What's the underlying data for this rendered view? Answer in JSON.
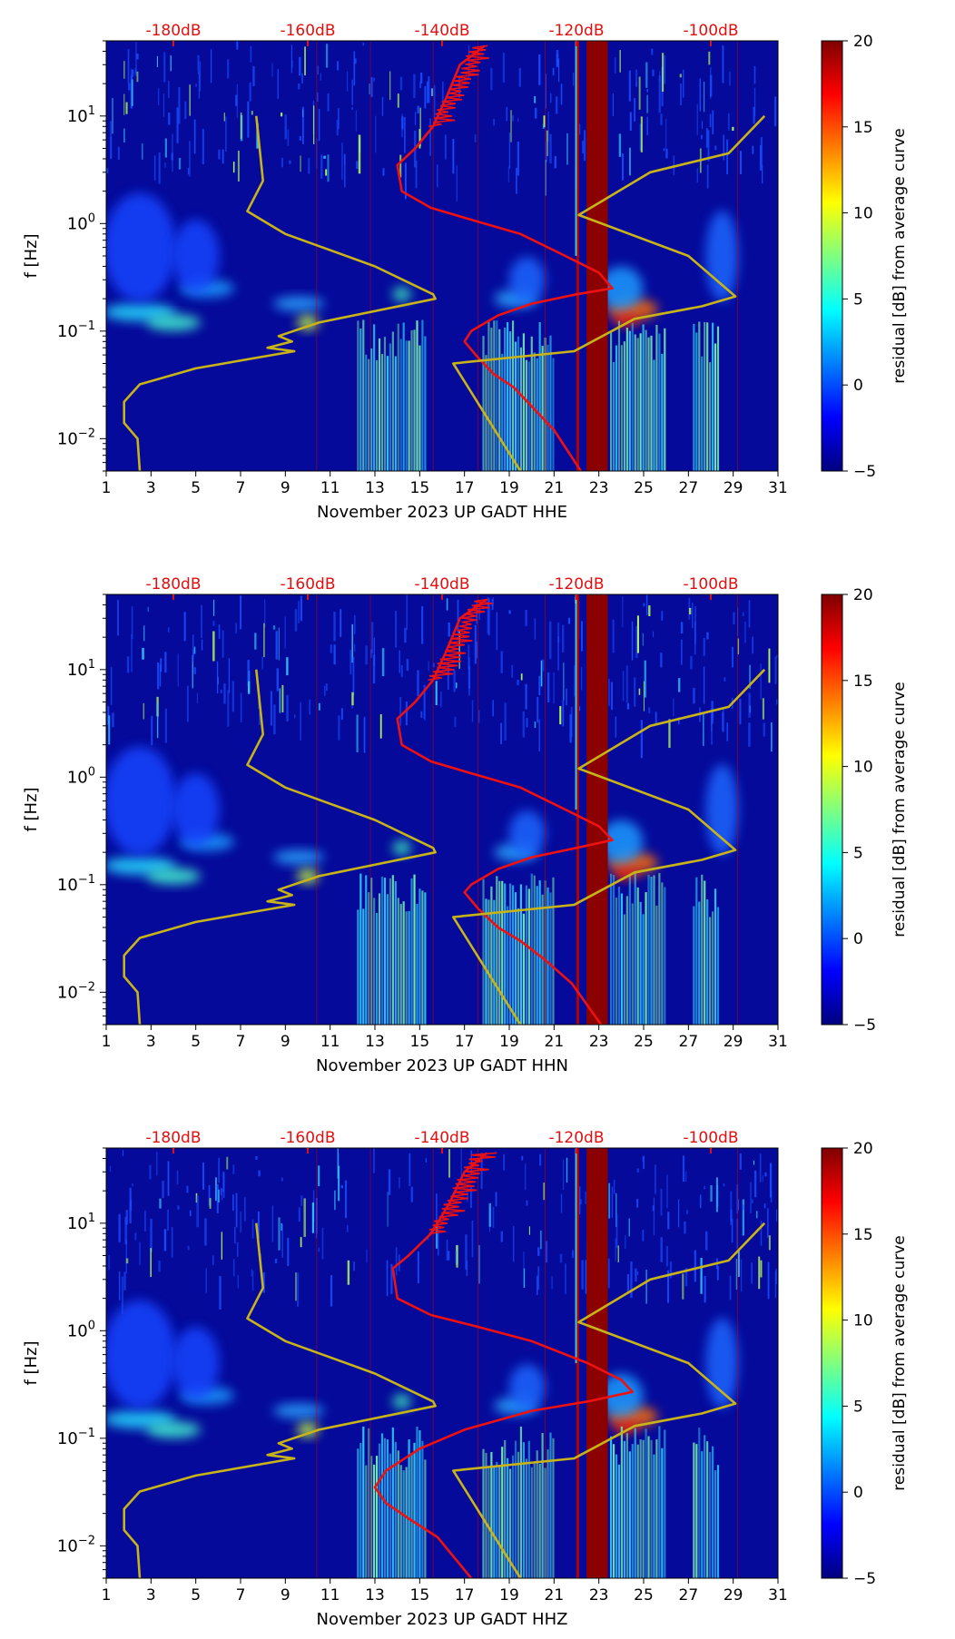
{
  "figure": {
    "day_ticks": [
      "1",
      "3",
      "5",
      "7",
      "9",
      "11",
      "13",
      "15",
      "17",
      "19",
      "21",
      "23",
      "25",
      "27",
      "29",
      "31"
    ],
    "freq_ticks": [
      {
        "base": "10",
        "exp": "1",
        "value": 10
      },
      {
        "base": "10",
        "exp": "0",
        "value": 1
      },
      {
        "base": "10",
        "exp": "−1",
        "value": 0.1
      },
      {
        "base": "10",
        "exp": "−2",
        "value": 0.01
      }
    ],
    "db_ticks": [
      {
        "label": "-180dB",
        "day": 4
      },
      {
        "label": "-160dB",
        "day": 10
      },
      {
        "label": "-140dB",
        "day": 16
      },
      {
        "label": "-120dB",
        "day": 22
      },
      {
        "label": "-100dB",
        "day": 28
      }
    ],
    "ylabel": "f [Hz]",
    "colorbar": {
      "label": "residual [dB] from average curve",
      "ticks": [
        "20",
        "15",
        "10",
        "5",
        "0",
        "−5"
      ],
      "range": [
        -5,
        20
      ],
      "colormap": [
        "#00007f",
        "#0000ff",
        "#007fff",
        "#00ffff",
        "#7fff7f",
        "#ffff00",
        "#ff7f00",
        "#ff0000",
        "#7f0000"
      ]
    },
    "colors": {
      "red_curve": "#ee1111",
      "yellow_curve": "#c8b418",
      "db_label": "#e01010"
    }
  },
  "chart_data": [
    {
      "type": "heatmap",
      "title": "",
      "xlabel": "November 2023 UP GADT  HHE",
      "ylabel": "f [Hz]",
      "xlim": [
        1,
        31
      ],
      "ylim": [
        0.005,
        50
      ],
      "yscale": "log",
      "series": [
        {
          "name": "average PSD (top axis, dB)",
          "color": "red",
          "points": [
            [
              17.9,
              45
            ],
            [
              16.8,
              30
            ],
            [
              16.2,
              15
            ],
            [
              15.6,
              8
            ],
            [
              14.8,
              5
            ],
            [
              14.0,
              3.5
            ],
            [
              14.2,
              2
            ],
            [
              15.5,
              1.4
            ],
            [
              17.2,
              1.1
            ],
            [
              19.5,
              0.8
            ],
            [
              21.5,
              0.5
            ],
            [
              23,
              0.35
            ],
            [
              23.6,
              0.25
            ],
            [
              22,
              0.22
            ],
            [
              20,
              0.18
            ],
            [
              18.5,
              0.14
            ],
            [
              17.3,
              0.1
            ],
            [
              17,
              0.08
            ],
            [
              17.5,
              0.06
            ],
            [
              18.3,
              0.04
            ],
            [
              19.2,
              0.03
            ],
            [
              20,
              0.02
            ],
            [
              21,
              0.012
            ],
            [
              22.2,
              0.005
            ]
          ]
        },
        {
          "name": "yellow reference",
          "color": "yellow",
          "points": [
            [
              7.7,
              10
            ],
            [
              8.0,
              2.5
            ],
            [
              7.3,
              1.3
            ],
            [
              9,
              0.8
            ],
            [
              13,
              0.4
            ],
            [
              15.6,
              0.22
            ],
            [
              15.7,
              0.2
            ],
            [
              10.5,
              0.12
            ],
            [
              8.7,
              0.09
            ],
            [
              9.3,
              0.08
            ],
            [
              8.2,
              0.07
            ],
            [
              9.4,
              0.065
            ],
            [
              5,
              0.045
            ],
            [
              2.5,
              0.032
            ],
            [
              1.8,
              0.022
            ],
            [
              1.8,
              0.014
            ],
            [
              2.4,
              0.01
            ],
            [
              2.5,
              0.005
            ]
          ]
        },
        {
          "name": "yellow reference (right)",
          "color": "yellow",
          "points": [
            [
              30.4,
              10
            ],
            [
              28.8,
              4.5
            ],
            [
              25.3,
              3
            ],
            [
              22.1,
              1.2
            ],
            [
              27,
              0.5
            ],
            [
              29.1,
              0.21
            ],
            [
              27.6,
              0.17
            ],
            [
              24.6,
              0.13
            ],
            [
              21.9,
              0.065
            ],
            [
              16.5,
              0.05
            ],
            [
              19.5,
              0.005
            ]
          ]
        }
      ],
      "bright_columns_days": [
        22.5,
        23.1
      ],
      "colorbar_range": [
        -5,
        20
      ]
    },
    {
      "type": "heatmap",
      "title": "",
      "xlabel": "November 2023 UP GADT  HHN",
      "ylabel": "f [Hz]",
      "xlim": [
        1,
        31
      ],
      "ylim": [
        0.005,
        50
      ],
      "yscale": "log",
      "series": [
        {
          "name": "average PSD (top axis, dB)",
          "color": "red",
          "points": [
            [
              18.0,
              45
            ],
            [
              16.8,
              30
            ],
            [
              16.2,
              15
            ],
            [
              15.6,
              8
            ],
            [
              14.8,
              5
            ],
            [
              14.0,
              3.5
            ],
            [
              14.2,
              2
            ],
            [
              15.5,
              1.4
            ],
            [
              17.2,
              1.1
            ],
            [
              19.5,
              0.8
            ],
            [
              21.5,
              0.5
            ],
            [
              23,
              0.35
            ],
            [
              23.6,
              0.26
            ],
            [
              22,
              0.22
            ],
            [
              20,
              0.18
            ],
            [
              18.5,
              0.14
            ],
            [
              17.3,
              0.1
            ],
            [
              17,
              0.085
            ],
            [
              17.6,
              0.06
            ],
            [
              18.5,
              0.04
            ],
            [
              19.5,
              0.03
            ],
            [
              20.6,
              0.02
            ],
            [
              21.8,
              0.012
            ],
            [
              23.1,
              0.005
            ]
          ]
        },
        {
          "name": "yellow reference",
          "color": "yellow",
          "points": [
            [
              7.7,
              10
            ],
            [
              8.0,
              2.5
            ],
            [
              7.3,
              1.3
            ],
            [
              9,
              0.8
            ],
            [
              13,
              0.4
            ],
            [
              15.6,
              0.22
            ],
            [
              15.7,
              0.2
            ],
            [
              10.5,
              0.12
            ],
            [
              8.7,
              0.09
            ],
            [
              9.3,
              0.08
            ],
            [
              8.2,
              0.07
            ],
            [
              9.4,
              0.065
            ],
            [
              5,
              0.045
            ],
            [
              2.5,
              0.032
            ],
            [
              1.8,
              0.022
            ],
            [
              1.8,
              0.014
            ],
            [
              2.4,
              0.01
            ],
            [
              2.5,
              0.005
            ]
          ]
        },
        {
          "name": "yellow reference (right)",
          "color": "yellow",
          "points": [
            [
              30.4,
              10
            ],
            [
              28.8,
              4.5
            ],
            [
              25.3,
              3
            ],
            [
              22.1,
              1.2
            ],
            [
              27,
              0.5
            ],
            [
              29.1,
              0.21
            ],
            [
              27.6,
              0.17
            ],
            [
              24.6,
              0.13
            ],
            [
              21.9,
              0.065
            ],
            [
              16.5,
              0.05
            ],
            [
              19.5,
              0.005
            ]
          ]
        }
      ],
      "bright_columns_days": [
        22.5,
        23.1
      ],
      "colorbar_range": [
        -5,
        20
      ]
    },
    {
      "type": "heatmap",
      "title": "",
      "xlabel": "November 2023 UP GADT  HHZ",
      "ylabel": "f [Hz]",
      "xlim": [
        1,
        31
      ],
      "ylim": [
        0.005,
        50
      ],
      "yscale": "log",
      "series": [
        {
          "name": "average PSD (top axis, dB)",
          "color": "red",
          "points": [
            [
              18.0,
              45
            ],
            [
              17.0,
              30
            ],
            [
              16.3,
              15
            ],
            [
              15.5,
              8
            ],
            [
              14.5,
              5
            ],
            [
              13.8,
              3.8
            ],
            [
              14.0,
              2
            ],
            [
              15.5,
              1.4
            ],
            [
              17.5,
              1.1
            ],
            [
              20,
              0.8
            ],
            [
              22.5,
              0.5
            ],
            [
              24,
              0.35
            ],
            [
              24.5,
              0.27
            ],
            [
              22.5,
              0.22
            ],
            [
              20,
              0.18
            ],
            [
              17,
              0.12
            ],
            [
              15,
              0.08
            ],
            [
              13.5,
              0.05
            ],
            [
              13,
              0.035
            ],
            [
              13.5,
              0.025
            ],
            [
              14.5,
              0.018
            ],
            [
              15.8,
              0.012
            ],
            [
              17.3,
              0.005
            ]
          ]
        },
        {
          "name": "yellow reference",
          "color": "yellow",
          "points": [
            [
              7.7,
              10
            ],
            [
              8.0,
              2.5
            ],
            [
              7.3,
              1.3
            ],
            [
              9,
              0.8
            ],
            [
              13,
              0.4
            ],
            [
              15.6,
              0.22
            ],
            [
              15.7,
              0.2
            ],
            [
              10.5,
              0.12
            ],
            [
              8.7,
              0.09
            ],
            [
              9.3,
              0.08
            ],
            [
              8.2,
              0.07
            ],
            [
              9.4,
              0.065
            ],
            [
              5,
              0.045
            ],
            [
              2.5,
              0.032
            ],
            [
              1.8,
              0.022
            ],
            [
              1.8,
              0.014
            ],
            [
              2.4,
              0.01
            ],
            [
              2.5,
              0.005
            ]
          ]
        },
        {
          "name": "yellow reference (right)",
          "color": "yellow",
          "points": [
            [
              30.4,
              10
            ],
            [
              28.8,
              4.5
            ],
            [
              25.3,
              3
            ],
            [
              22.1,
              1.2
            ],
            [
              27,
              0.5
            ],
            [
              29.1,
              0.21
            ],
            [
              27.6,
              0.17
            ],
            [
              24.6,
              0.13
            ],
            [
              21.9,
              0.065
            ],
            [
              16.5,
              0.05
            ],
            [
              19.5,
              0.005
            ]
          ]
        }
      ],
      "bright_columns_days": [
        22.5,
        23.1
      ],
      "colorbar_range": [
        -5,
        20
      ]
    }
  ]
}
